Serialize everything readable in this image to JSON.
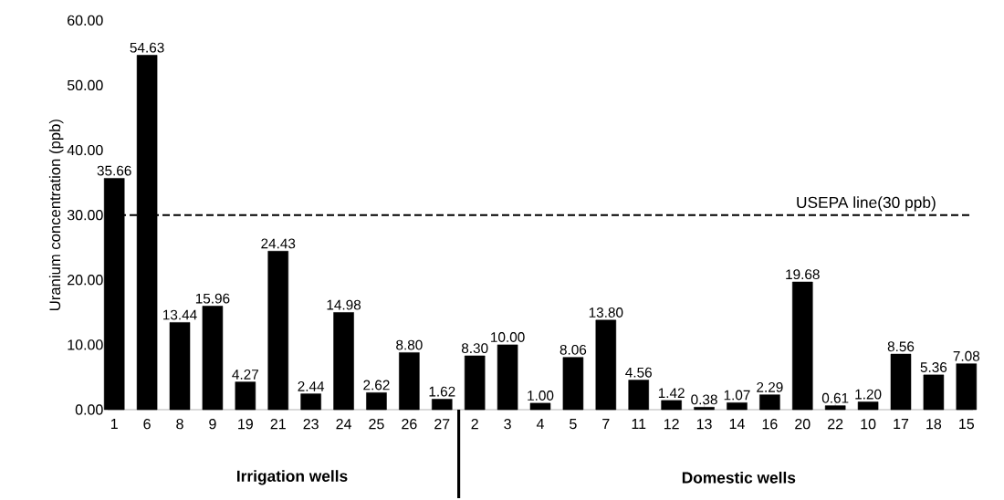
{
  "chart_data": {
    "type": "bar",
    "ylabel": "Uranium concentration (ppb)",
    "categories": [
      "1",
      "6",
      "8",
      "9",
      "19",
      "21",
      "23",
      "24",
      "25",
      "26",
      "27",
      "2",
      "3",
      "4",
      "5",
      "7",
      "11",
      "12",
      "13",
      "14",
      "16",
      "20",
      "22",
      "10",
      "17",
      "18",
      "15"
    ],
    "values": [
      35.66,
      54.63,
      13.44,
      15.96,
      4.27,
      24.43,
      2.44,
      14.98,
      2.62,
      8.8,
      1.62,
      8.3,
      10.0,
      1.0,
      8.06,
      13.8,
      4.56,
      1.42,
      0.38,
      1.07,
      2.29,
      19.68,
      0.61,
      1.2,
      8.56,
      5.36,
      7.08
    ],
    "value_labels": [
      "35.66",
      "54.63",
      "13.44",
      "15.96",
      "4.27",
      "24.43",
      "2.44",
      "14.98",
      "2.62",
      "8.80",
      "1.62",
      "8.30",
      "10.00",
      "1.00",
      "8.06",
      "13.80",
      "4.56",
      "1.42",
      "0.38",
      "1.07",
      "2.29",
      "19.68",
      "0.61",
      "1.20",
      "8.56",
      "5.36",
      "7.08"
    ],
    "color": "#000000",
    "ylim": [
      0,
      60
    ],
    "yticks": [
      {
        "value": 0,
        "label": "0.00"
      },
      {
        "value": 10,
        "label": "10.00"
      },
      {
        "value": 20,
        "label": "20.00"
      },
      {
        "value": 30,
        "label": "30.00"
      },
      {
        "value": 40,
        "label": "40.00"
      },
      {
        "value": 50,
        "label": "50.00"
      },
      {
        "value": 60,
        "label": "60.00"
      }
    ],
    "ref_lines": [
      {
        "axis": "y",
        "value": 30,
        "label": "USEPA line(30 ppb)",
        "color": "#000000",
        "line_style": "dashed"
      }
    ],
    "annotations": [
      "Irrigation wells",
      "Domestic wells"
    ]
  }
}
